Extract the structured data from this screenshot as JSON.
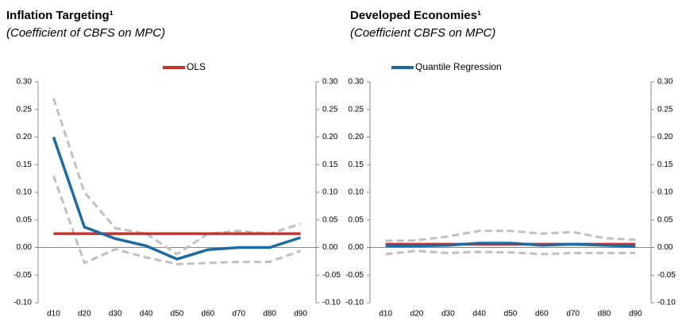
{
  "chart_data": [
    {
      "type": "line",
      "title": "Inflation Targeting¹",
      "subtitle": "(Coefficient of CBFS on MPC)",
      "categories": [
        "d10",
        "d20",
        "d30",
        "d40",
        "d50",
        "d60",
        "d70",
        "d80",
        "d90"
      ],
      "ylim": [
        -0.1,
        0.3
      ],
      "y2lim": [
        -0.1,
        0.3
      ],
      "yticks": [
        {
          "value": -0.1,
          "label": "-0.10"
        },
        {
          "value": -0.05,
          "label": "-0.05"
        },
        {
          "value": 0,
          "label": "0.00"
        },
        {
          "value": 0.05,
          "label": "0.05"
        },
        {
          "value": 0.1,
          "label": "0.10"
        },
        {
          "value": 0.15,
          "label": "0.15"
        },
        {
          "value": 0.2,
          "label": "0.20"
        },
        {
          "value": 0.25,
          "label": "0.25"
        },
        {
          "value": 0.3,
          "label": "0.30"
        }
      ],
      "y2ticks": [
        {
          "value": -0.1,
          "label": "-0.10"
        },
        {
          "value": -0.05,
          "label": "-0.05"
        },
        {
          "value": 0,
          "label": "0.00"
        },
        {
          "value": 0.05,
          "label": "0.05"
        },
        {
          "value": 0.1,
          "label": "0.10"
        },
        {
          "value": 0.15,
          "label": "0.15"
        },
        {
          "value": 0.2,
          "label": "0.20"
        },
        {
          "value": 0.25,
          "label": "0.25"
        },
        {
          "value": 0.3,
          "label": "0.30"
        }
      ],
      "series": [
        {
          "color": "#c0c0c0",
          "dashed": true,
          "values": [
            0.27,
            0.1,
            0.035,
            0.025,
            -0.012,
            0.025,
            0.03,
            0.025,
            0.043
          ]
        },
        {
          "color": "#c0c0c0",
          "dashed": true,
          "values": [
            0.13,
            -0.028,
            -0.003,
            -0.018,
            -0.03,
            -0.028,
            -0.026,
            -0.026,
            -0.006
          ]
        },
        {
          "name": "OLS",
          "color": "#c8332f",
          "values": [
            0.025,
            0.025,
            0.025,
            0.025,
            0.025,
            0.025,
            0.025,
            0.025,
            0.025
          ]
        },
        {
          "color": "#1f6aa0",
          "values": [
            0.2,
            0.037,
            0.016,
            0.003,
            -0.021,
            -0.004,
            0.0,
            0.0,
            0.018
          ]
        }
      ]
    },
    {
      "type": "line",
      "title": "Developed Economies¹",
      "subtitle": "(Coefficient CBFS on MPC)",
      "categories": [
        "d10",
        "d20",
        "d30",
        "d40",
        "d50",
        "d60",
        "d70",
        "d80",
        "d90"
      ],
      "ylim": [
        -0.1,
        0.3
      ],
      "y2lim": [
        -0.1,
        0.3
      ],
      "yticks": [
        {
          "value": -0.1,
          "label": "-0.10"
        },
        {
          "value": -0.05,
          "label": "-0.05"
        },
        {
          "value": 0,
          "label": "0.00"
        },
        {
          "value": 0.05,
          "label": "0.05"
        },
        {
          "value": 0.1,
          "label": "0.10"
        },
        {
          "value": 0.15,
          "label": "0.15"
        },
        {
          "value": 0.2,
          "label": "0.20"
        },
        {
          "value": 0.25,
          "label": "0.25"
        },
        {
          "value": 0.3,
          "label": "0.30"
        }
      ],
      "y2ticks": [
        {
          "value": -0.1,
          "label": "-0.10"
        },
        {
          "value": -0.05,
          "label": "-0.05"
        },
        {
          "value": 0,
          "label": "0.00"
        },
        {
          "value": 0.05,
          "label": "0.05"
        },
        {
          "value": 0.1,
          "label": "0.10"
        },
        {
          "value": 0.15,
          "label": "0.15"
        },
        {
          "value": 0.2,
          "label": "0.20"
        },
        {
          "value": 0.25,
          "label": "0.25"
        },
        {
          "value": 0.3,
          "label": "0.30"
        }
      ],
      "series": [
        {
          "color": "#c0c0c0",
          "dashed": true,
          "values": [
            0.012,
            0.013,
            0.02,
            0.03,
            0.03,
            0.025,
            0.028,
            0.017,
            0.014
          ]
        },
        {
          "color": "#c0c0c0",
          "dashed": true,
          "values": [
            -0.012,
            -0.006,
            -0.01,
            -0.008,
            -0.009,
            -0.012,
            -0.01,
            -0.01,
            -0.01
          ]
        },
        {
          "color": "#c8332f",
          "values": [
            0.006,
            0.006,
            0.006,
            0.006,
            0.006,
            0.006,
            0.006,
            0.006,
            0.006
          ]
        },
        {
          "name": "Quantile Regression",
          "color": "#1f6aa0",
          "values": [
            0.003,
            0.003,
            0.004,
            0.008,
            0.008,
            0.004,
            0.006,
            0.004,
            0.002
          ]
        }
      ]
    }
  ]
}
